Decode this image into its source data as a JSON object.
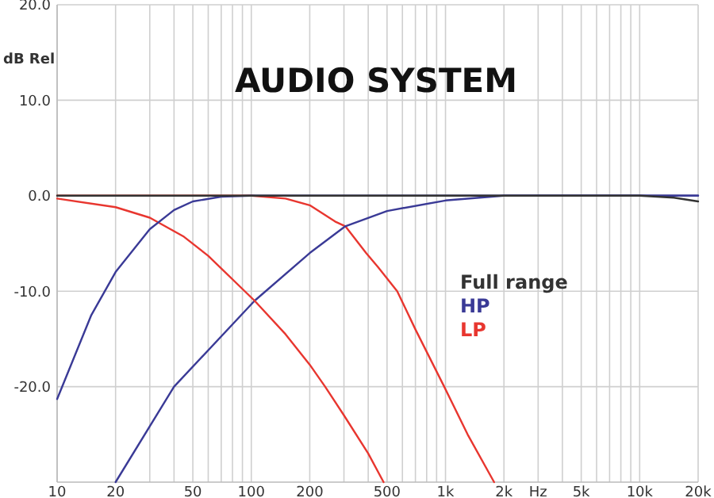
{
  "chart_data": {
    "type": "line",
    "title": "AUDIO SYSTEM",
    "ylabel": "dB Rel",
    "log": "x",
    "grid": true,
    "legend": "right",
    "marker": "none",
    "line_style": "solid",
    "xlim": [
      10,
      20000
    ],
    "ylim": [
      -30,
      20
    ],
    "xticks": [
      10,
      20,
      {
        "value": 30,
        "label": null
      },
      {
        "value": 40,
        "label": null
      },
      50,
      {
        "value": 60,
        "label": null
      },
      {
        "value": 70,
        "label": null
      },
      {
        "value": 80,
        "label": null
      },
      {
        "value": 90,
        "label": null
      },
      100,
      200,
      {
        "value": 300,
        "label": null
      },
      {
        "value": 400,
        "label": null
      },
      500,
      {
        "value": 600,
        "label": null
      },
      {
        "value": 700,
        "label": null
      },
      {
        "value": 800,
        "label": null
      },
      {
        "value": 900,
        "label": null
      },
      {
        "value": 1000,
        "label": "1k"
      },
      {
        "value": 2000,
        "label": "2k"
      },
      {
        "value": 3000,
        "label": "Hz"
      },
      {
        "value": 4000,
        "label": null
      },
      {
        "value": 5000,
        "label": "5k"
      },
      {
        "value": 6000,
        "label": null
      },
      {
        "value": 7000,
        "label": null
      },
      {
        "value": 8000,
        "label": null
      },
      {
        "value": 9000,
        "label": null
      },
      {
        "value": 10000,
        "label": "10k"
      },
      {
        "value": 20000,
        "label": "20k"
      }
    ],
    "yticks": [
      {
        "value": 20,
        "label": "20.0"
      },
      {
        "value": 10,
        "label": "10.0"
      },
      {
        "value": 0,
        "label": "0.0"
      },
      {
        "value": -10,
        "label": "-10.0"
      },
      {
        "value": -20,
        "label": "-20.0"
      }
    ],
    "series": [
      {
        "name": "Full range",
        "color": "#333333",
        "x": [
          10,
          100,
          1000,
          5000,
          10000,
          15000,
          20000
        ],
        "values": [
          0,
          0,
          0,
          0,
          0,
          -0.2,
          -0.6
        ]
      },
      {
        "name": "HP",
        "color": "#3a3a96",
        "x": [
          10,
          15,
          20,
          30,
          40,
          50,
          70,
          100,
          1000,
          20000
        ],
        "values": [
          -21.3,
          -12.5,
          -8,
          -3.5,
          -1.5,
          -0.6,
          -0.1,
          0,
          0,
          0
        ]
      },
      {
        "name": "LP",
        "color": "#e8362f",
        "x": [
          10,
          20,
          30,
          45,
          60,
          104,
          150,
          200,
          240,
          300,
          400,
          480
        ],
        "values": [
          -0.3,
          -1.2,
          -2.3,
          -4.3,
          -6.3,
          -11,
          -14.5,
          -17.7,
          -20,
          -23,
          -27,
          -30
        ]
      },
      {
        "color": "#3a3a96",
        "x": [
          20,
          40,
          104,
          200,
          305,
          500,
          1000,
          2000,
          20000
        ],
        "values": [
          -30,
          -20,
          -11,
          -6,
          -3.2,
          -1.6,
          -0.5,
          0,
          0
        ]
      },
      {
        "color": "#e8362f",
        "x": [
          10,
          50,
          100,
          150,
          200,
          270,
          305,
          390,
          450,
          564,
          700,
          985,
          1300,
          1780
        ],
        "values": [
          0,
          0,
          0,
          -0.3,
          -1,
          -2.7,
          -3.2,
          -6,
          -7.5,
          -10,
          -14,
          -20,
          -25,
          -30
        ]
      }
    ]
  }
}
